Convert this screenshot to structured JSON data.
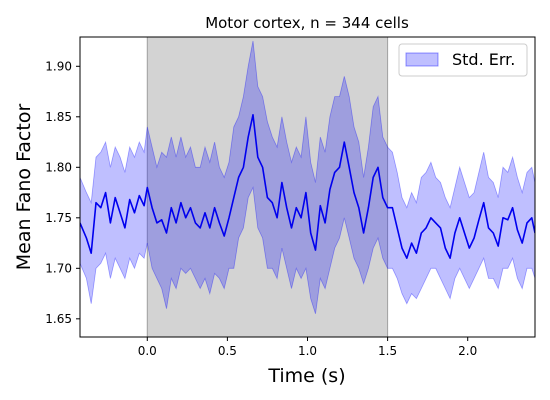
{
  "chart_data": {
    "type": "line",
    "title": "Motor cortex, n = 344 cells",
    "xlabel": "Time (s)",
    "ylabel": "Mean Fano Factor",
    "xlim": [
      -0.42,
      2.42
    ],
    "ylim": [
      1.632,
      1.929
    ],
    "x_ticks": [
      0.0,
      0.5,
      1.0,
      1.5,
      2.0
    ],
    "x_tick_labels": [
      "0.0",
      "0.5",
      "1.0",
      "1.5",
      "2.0"
    ],
    "y_ticks": [
      1.65,
      1.7,
      1.75,
      1.8,
      1.85,
      1.9
    ],
    "y_tick_labels": [
      "1.65",
      "1.70",
      "1.75",
      "1.80",
      "1.85",
      "1.90"
    ],
    "legend": {
      "position": "top-right",
      "entries": [
        "Std. Err."
      ]
    },
    "shaded_region": {
      "x_start": 0.0,
      "x_end": 1.5,
      "color": "#d3d3d3"
    },
    "series": [
      {
        "name": "",
        "color": "#0000ee",
        "x": [
          -0.42,
          -0.38,
          -0.35,
          -0.32,
          -0.29,
          -0.26,
          -0.23,
          -0.2,
          -0.17,
          -0.14,
          -0.11,
          -0.08,
          -0.05,
          -0.02,
          0.0,
          0.03,
          0.06,
          0.09,
          0.12,
          0.15,
          0.18,
          0.21,
          0.24,
          0.27,
          0.3,
          0.33,
          0.36,
          0.39,
          0.42,
          0.45,
          0.48,
          0.51,
          0.54,
          0.57,
          0.6,
          0.63,
          0.66,
          0.69,
          0.72,
          0.75,
          0.78,
          0.81,
          0.84,
          0.87,
          0.9,
          0.93,
          0.96,
          0.99,
          1.02,
          1.05,
          1.08,
          1.11,
          1.14,
          1.17,
          1.2,
          1.23,
          1.26,
          1.29,
          1.32,
          1.35,
          1.38,
          1.41,
          1.44,
          1.47,
          1.5,
          1.53,
          1.56,
          1.59,
          1.62,
          1.65,
          1.68,
          1.71,
          1.74,
          1.77,
          1.8,
          1.83,
          1.86,
          1.89,
          1.92,
          1.95,
          1.98,
          2.01,
          2.04,
          2.07,
          2.1,
          2.13,
          2.16,
          2.19,
          2.22,
          2.25,
          2.28,
          2.31,
          2.34,
          2.37,
          2.4,
          2.42
        ],
        "y": [
          1.745,
          1.73,
          1.715,
          1.765,
          1.76,
          1.775,
          1.745,
          1.77,
          1.755,
          1.74,
          1.768,
          1.755,
          1.772,
          1.762,
          1.78,
          1.76,
          1.745,
          1.748,
          1.735,
          1.76,
          1.745,
          1.765,
          1.75,
          1.76,
          1.745,
          1.74,
          1.755,
          1.74,
          1.76,
          1.745,
          1.732,
          1.75,
          1.77,
          1.79,
          1.8,
          1.83,
          1.852,
          1.81,
          1.8,
          1.77,
          1.765,
          1.75,
          1.785,
          1.76,
          1.74,
          1.76,
          1.75,
          1.775,
          1.735,
          1.718,
          1.762,
          1.745,
          1.778,
          1.795,
          1.8,
          1.825,
          1.8,
          1.775,
          1.76,
          1.735,
          1.76,
          1.79,
          1.8,
          1.77,
          1.76,
          1.76,
          1.74,
          1.72,
          1.71,
          1.725,
          1.715,
          1.735,
          1.74,
          1.75,
          1.745,
          1.74,
          1.72,
          1.71,
          1.735,
          1.75,
          1.735,
          1.72,
          1.73,
          1.748,
          1.765,
          1.74,
          1.735,
          1.722,
          1.75,
          1.748,
          1.76,
          1.738,
          1.725,
          1.745,
          1.75,
          1.735
        ]
      }
    ],
    "std_err_band": {
      "name": "Std. Err.",
      "color": "#0000ff",
      "alpha": 0.25,
      "lower": [
        1.705,
        1.69,
        1.665,
        1.7,
        1.705,
        1.715,
        1.69,
        1.71,
        1.7,
        1.69,
        1.71,
        1.7,
        1.715,
        1.71,
        1.725,
        1.7,
        1.69,
        1.68,
        1.66,
        1.69,
        1.68,
        1.7,
        1.695,
        1.7,
        1.69,
        1.68,
        1.69,
        1.675,
        1.695,
        1.69,
        1.68,
        1.7,
        1.7,
        1.73,
        1.74,
        1.77,
        1.78,
        1.74,
        1.73,
        1.7,
        1.7,
        1.69,
        1.72,
        1.7,
        1.68,
        1.7,
        1.69,
        1.7,
        1.67,
        1.655,
        1.69,
        1.68,
        1.7,
        1.72,
        1.73,
        1.75,
        1.73,
        1.71,
        1.7,
        1.685,
        1.7,
        1.72,
        1.73,
        1.71,
        1.7,
        1.7,
        1.69,
        1.675,
        1.665,
        1.675,
        1.67,
        1.68,
        1.69,
        1.7,
        1.7,
        1.69,
        1.68,
        1.67,
        1.69,
        1.7,
        1.69,
        1.68,
        1.69,
        1.7,
        1.71,
        1.69,
        1.69,
        1.68,
        1.7,
        1.7,
        1.71,
        1.69,
        1.68,
        1.7,
        1.7,
        1.69
      ],
      "upper": [
        1.79,
        1.775,
        1.765,
        1.81,
        1.815,
        1.825,
        1.8,
        1.82,
        1.81,
        1.795,
        1.82,
        1.81,
        1.825,
        1.815,
        1.84,
        1.82,
        1.8,
        1.815,
        1.81,
        1.83,
        1.81,
        1.83,
        1.81,
        1.82,
        1.8,
        1.8,
        1.82,
        1.805,
        1.825,
        1.8,
        1.79,
        1.805,
        1.84,
        1.85,
        1.87,
        1.9,
        1.925,
        1.88,
        1.87,
        1.845,
        1.83,
        1.82,
        1.85,
        1.825,
        1.805,
        1.82,
        1.81,
        1.85,
        1.805,
        1.785,
        1.83,
        1.815,
        1.85,
        1.87,
        1.87,
        1.89,
        1.87,
        1.84,
        1.825,
        1.79,
        1.82,
        1.86,
        1.87,
        1.83,
        1.82,
        1.815,
        1.795,
        1.77,
        1.76,
        1.775,
        1.765,
        1.79,
        1.795,
        1.805,
        1.79,
        1.785,
        1.77,
        1.76,
        1.78,
        1.8,
        1.785,
        1.77,
        1.775,
        1.795,
        1.815,
        1.79,
        1.785,
        1.77,
        1.8,
        1.795,
        1.81,
        1.79,
        1.775,
        1.795,
        1.8,
        1.785
      ]
    }
  }
}
